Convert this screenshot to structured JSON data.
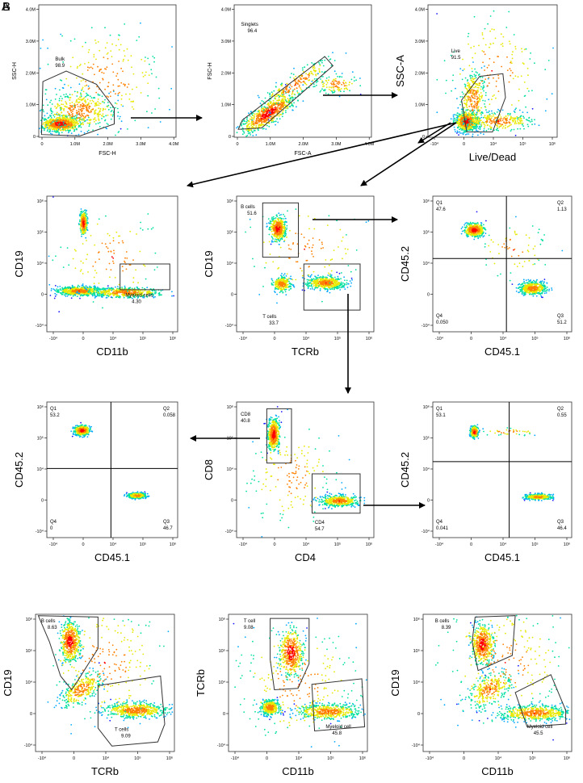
{
  "figure": {
    "panel_letters": [
      "A",
      "B"
    ],
    "colors": {
      "frame": "#333333",
      "gate": "#333333",
      "arrow": "#000000",
      "density": [
        "#1a1aff",
        "#00a8ff",
        "#00e0a0",
        "#e8e800",
        "#ff8000",
        "#ff0000"
      ]
    }
  },
  "chart_data": [
    {
      "id": "p1",
      "type": "scatter",
      "subtype": "flow-density",
      "xscale": "linear",
      "yscale": "linear",
      "xlabel": "FSC-H",
      "ylabel": "SSC-H",
      "xticks": [
        "0",
        "1.0M",
        "2.0M",
        "3.0M",
        "4.0M"
      ],
      "yticks": [
        "0",
        "1.0M",
        "2.0M",
        "3.0M",
        "4.0M"
      ],
      "gates": [
        {
          "name": "Bulk",
          "value": "98.9"
        }
      ]
    },
    {
      "id": "p2",
      "type": "scatter",
      "subtype": "flow-density",
      "xscale": "linear",
      "yscale": "linear",
      "xlabel": "FSC-A",
      "ylabel": "FSC-H",
      "xticks": [
        "0",
        "1.0M",
        "2.0M",
        "3.0M",
        "4.0M"
      ],
      "yticks": [
        "0",
        "1.0M",
        "2.0M",
        "3.0M",
        "4.0M"
      ],
      "gates": [
        {
          "name": "Singlets",
          "value": "96.4"
        }
      ]
    },
    {
      "id": "p3",
      "type": "scatter",
      "subtype": "flow-density",
      "xscale": "biexponential",
      "yscale": "linear",
      "xlabel": "Live/Dead",
      "ylabel": "SSC-A",
      "xticks": [
        "-10⁴",
        "0",
        "10⁴",
        "10⁵",
        "10⁶"
      ],
      "yticks": [
        "0",
        "1.0M",
        "2.0M",
        "3.0M",
        "4.0M"
      ],
      "gates": [
        {
          "name": "Live",
          "value": "91.5"
        }
      ]
    },
    {
      "id": "p4",
      "type": "scatter",
      "subtype": "flow-density",
      "xscale": "biexponential",
      "yscale": "biexponential",
      "xlabel": "CD11b",
      "ylabel": "CD19",
      "xticks": [
        "-10⁴",
        "0",
        "10⁴",
        "10⁵",
        "10⁶"
      ],
      "yticks": [
        "-10⁴",
        "0",
        "10⁴",
        "10⁵",
        "10⁶"
      ],
      "gates": [
        {
          "name": "Myeloid cells",
          "value": "4.30"
        }
      ]
    },
    {
      "id": "p5",
      "type": "scatter",
      "subtype": "flow-density",
      "xscale": "biexponential",
      "yscale": "biexponential",
      "xlabel": "TCRb",
      "ylabel": "CD19",
      "xticks": [
        "-10⁴",
        "0",
        "10⁴",
        "10⁵",
        "10⁶"
      ],
      "yticks": [
        "-10⁴",
        "0",
        "10⁴",
        "10⁵",
        "10⁶"
      ],
      "gates": [
        {
          "name": "B cells",
          "value": "51.6"
        },
        {
          "name": "T cells",
          "value": "33.7"
        }
      ]
    },
    {
      "id": "p6",
      "type": "scatter",
      "subtype": "flow-density",
      "xscale": "biexponential",
      "yscale": "biexponential",
      "xlabel": "CD45.1",
      "ylabel": "CD45.2",
      "xticks": [
        "-10⁴",
        "0",
        "10⁴",
        "10⁵",
        "10⁶"
      ],
      "yticks": [
        "-10⁴",
        "0",
        "10⁴",
        "10⁵",
        "10⁶"
      ],
      "quadrants": {
        "Q1": "47.6",
        "Q2": "1.13",
        "Q3": "51.2",
        "Q4": "0.050"
      }
    },
    {
      "id": "p7",
      "type": "scatter",
      "subtype": "flow-density",
      "xscale": "biexponential",
      "yscale": "biexponential",
      "xlabel": "CD45.1",
      "ylabel": "CD45.2",
      "xticks": [
        "-10⁴",
        "0",
        "10⁴",
        "10⁵",
        "10⁶"
      ],
      "yticks": [
        "-10⁴",
        "0",
        "10⁴",
        "10⁵",
        "10⁶"
      ],
      "quadrants": {
        "Q1": "53.2",
        "Q2": "0.058",
        "Q3": "46.7",
        "Q4": "0"
      }
    },
    {
      "id": "p8",
      "type": "scatter",
      "subtype": "flow-density",
      "xscale": "biexponential",
      "yscale": "biexponential",
      "xlabel": "CD4",
      "ylabel": "CD8",
      "xticks": [
        "-10⁴",
        "0",
        "10⁴",
        "10⁵",
        "10⁶"
      ],
      "yticks": [
        "-10⁴",
        "0",
        "10⁴",
        "10⁵",
        "10⁶"
      ],
      "gates": [
        {
          "name": "CD8",
          "value": "40.8"
        },
        {
          "name": "CD4",
          "value": "54.7"
        }
      ]
    },
    {
      "id": "p9",
      "type": "scatter",
      "subtype": "flow-density",
      "xscale": "biexponential",
      "yscale": "biexponential",
      "xlabel": "CD45.1",
      "ylabel": "CD45.2",
      "xticks": [
        "-10⁴",
        "0",
        "10⁴",
        "10⁵",
        "10⁶"
      ],
      "yticks": [
        "-10⁴",
        "0",
        "10⁴",
        "10⁵",
        "10⁶"
      ],
      "quadrants": {
        "Q1": "53.1",
        "Q2": "0.55",
        "Q3": "46.4",
        "Q4": "0.041"
      }
    },
    {
      "id": "p10",
      "type": "scatter",
      "subtype": "flow-density",
      "xscale": "biexponential",
      "yscale": "biexponential",
      "xlabel": "TCRb",
      "ylabel": "CD19",
      "xticks": [
        "-10⁴",
        "0",
        "10⁴",
        "10⁵",
        "10⁶"
      ],
      "yticks": [
        "-10⁴",
        "0",
        "10⁴",
        "10⁵",
        "10⁶"
      ],
      "gates": [
        {
          "name": "B cells",
          "value": "8.63"
        },
        {
          "name": "T cells",
          "value": "9.09"
        }
      ]
    },
    {
      "id": "p11",
      "type": "scatter",
      "subtype": "flow-density",
      "xscale": "biexponential",
      "yscale": "biexponential",
      "xlabel": "CD11b",
      "ylabel": "TCRb",
      "xticks": [
        "-10⁴",
        "0",
        "10⁴",
        "10⁵",
        "10⁶"
      ],
      "yticks": [
        "-10⁴",
        "0",
        "10⁴",
        "10⁵",
        "10⁶"
      ],
      "gates": [
        {
          "name": "T cell",
          "value": "9.08"
        },
        {
          "name": "Myeloid cell",
          "value": "45.8"
        }
      ]
    },
    {
      "id": "p12",
      "type": "scatter",
      "subtype": "flow-density",
      "xscale": "biexponential",
      "yscale": "biexponential",
      "xlabel": "CD11b",
      "ylabel": "CD19",
      "xticks": [
        "-10⁴",
        "0",
        "10⁴",
        "10⁵",
        "10⁶"
      ],
      "yticks": [
        "-10⁴",
        "0",
        "10⁴",
        "10⁵",
        "10⁶"
      ],
      "gates": [
        {
          "name": "B cells",
          "value": "8.39"
        },
        {
          "name": "Myeloid cell",
          "value": "45.5"
        }
      ]
    }
  ]
}
